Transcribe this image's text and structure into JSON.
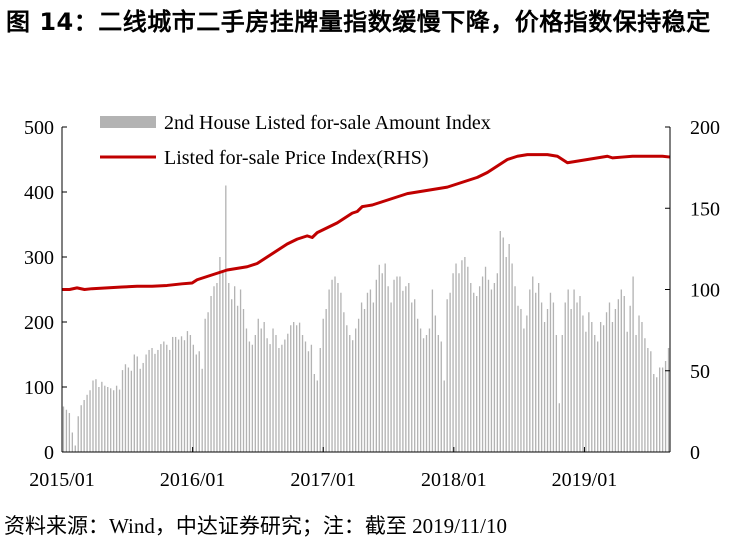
{
  "figure": {
    "title": "图 14：二线城市二手房挂牌量指数缓慢下降，价格指数保持稳定",
    "source": "资料来源：Wind，中达证券研究；注：截至 2019/11/10"
  },
  "colors": {
    "bars": "#b3b3b3",
    "line": "#c00000",
    "axis": "#000000"
  },
  "chart_data": {
    "type": "bar+line",
    "x_labels": [
      "2015/01",
      "2016/01",
      "2017/01",
      "2018/01",
      "2019/01"
    ],
    "left_axis": {
      "ylim": [
        0,
        500
      ],
      "ticks": [
        0,
        100,
        200,
        300,
        400,
        500
      ]
    },
    "right_axis": {
      "ylim": [
        0,
        200
      ],
      "ticks": [
        0,
        50,
        100,
        150,
        200
      ]
    },
    "legend": {
      "placement": "top",
      "entries": [
        "2nd House Listed for-sale Amount Index",
        "Listed for-sale Price Index(RHS)"
      ]
    },
    "series": [
      {
        "name": "2nd House Listed for-sale Amount Index",
        "type": "bar",
        "axis": "left",
        "period": "weekly (approx.)",
        "x_start": "2015/01",
        "values": [
          70,
          65,
          60,
          30,
          10,
          55,
          72,
          80,
          88,
          95,
          110,
          112,
          100,
          108,
          102,
          100,
          98,
          95,
          102,
          96,
          126,
          135,
          130,
          125,
          150,
          147,
          128,
          137,
          150,
          157,
          160,
          151,
          157,
          166,
          170,
          165,
          157,
          177,
          177,
          173,
          178,
          172,
          186,
          180,
          165,
          150,
          155,
          128,
          205,
          215,
          240,
          255,
          260,
          300,
          280,
          410,
          260,
          235,
          255,
          225,
          250,
          220,
          190,
          170,
          165,
          180,
          205,
          190,
          200,
          175,
          166,
          190,
          180,
          160,
          165,
          173,
          182,
          195,
          200,
          195,
          199,
          180,
          170,
          155,
          165,
          120,
          110,
          160,
          205,
          220,
          250,
          265,
          270,
          260,
          245,
          215,
          195,
          180,
          172,
          190,
          205,
          230,
          220,
          245,
          250,
          230,
          265,
          288,
          275,
          290,
          255,
          230,
          265,
          270,
          270,
          248,
          255,
          260,
          230,
          235,
          205,
          190,
          175,
          180,
          190,
          250,
          210,
          180,
          170,
          110,
          235,
          245,
          275,
          290,
          275,
          295,
          300,
          285,
          260,
          245,
          240,
          255,
          270,
          285,
          265,
          250,
          260,
          275,
          340,
          330,
          300,
          320,
          290,
          255,
          225,
          220,
          190,
          210,
          250,
          270,
          245,
          260,
          230,
          200,
          220,
          245,
          230,
          180,
          75,
          180,
          230,
          250,
          220,
          250,
          230,
          240,
          210,
          185,
          215,
          200,
          180,
          170,
          200,
          195,
          215,
          230,
          200,
          220,
          235,
          250,
          240,
          185,
          225,
          270,
          180,
          210,
          200,
          175,
          160,
          155,
          120,
          115,
          130,
          130,
          140,
          160
        ]
      },
      {
        "name": "Listed for-sale Price Index(RHS)",
        "type": "line",
        "axis": "right",
        "x_start": "2015/01",
        "points": [
          [
            0,
            100
          ],
          [
            3,
            100
          ],
          [
            6,
            101
          ],
          [
            9,
            100
          ],
          [
            12,
            100.5
          ],
          [
            18,
            101
          ],
          [
            24,
            101.5
          ],
          [
            30,
            102
          ],
          [
            36,
            102
          ],
          [
            42,
            102.5
          ],
          [
            48,
            103.5
          ],
          [
            52,
            104
          ],
          [
            54,
            106
          ],
          [
            58,
            108
          ],
          [
            62,
            110
          ],
          [
            66,
            112
          ],
          [
            70,
            113
          ],
          [
            74,
            114
          ],
          [
            78,
            116
          ],
          [
            82,
            120
          ],
          [
            86,
            124
          ],
          [
            90,
            128
          ],
          [
            94,
            131
          ],
          [
            96,
            132
          ],
          [
            98,
            133
          ],
          [
            100,
            132
          ],
          [
            102,
            135
          ],
          [
            106,
            138
          ],
          [
            110,
            141
          ],
          [
            112,
            143
          ],
          [
            114,
            145
          ],
          [
            116,
            147
          ],
          [
            118,
            148
          ],
          [
            120,
            151
          ],
          [
            122,
            151.5
          ],
          [
            124,
            152
          ],
          [
            126,
            153
          ],
          [
            128,
            154
          ],
          [
            130,
            155
          ],
          [
            134,
            157
          ],
          [
            138,
            159
          ],
          [
            142,
            160
          ],
          [
            146,
            161
          ],
          [
            150,
            162
          ],
          [
            154,
            163
          ],
          [
            158,
            165
          ],
          [
            162,
            167
          ],
          [
            166,
            169
          ],
          [
            170,
            172
          ],
          [
            174,
            176
          ],
          [
            178,
            180
          ],
          [
            182,
            182
          ],
          [
            186,
            183
          ],
          [
            190,
            183
          ],
          [
            194,
            183
          ],
          [
            198,
            182
          ],
          [
            200,
            180
          ],
          [
            202,
            178
          ],
          [
            206,
            179
          ],
          [
            210,
            180
          ],
          [
            214,
            181
          ],
          [
            218,
            182
          ],
          [
            220,
            181
          ],
          [
            224,
            181.5
          ],
          [
            228,
            182
          ],
          [
            232,
            182
          ],
          [
            236,
            182
          ],
          [
            240,
            182
          ],
          [
            243,
            181.5
          ]
        ],
        "x_max": 243
      }
    ]
  }
}
